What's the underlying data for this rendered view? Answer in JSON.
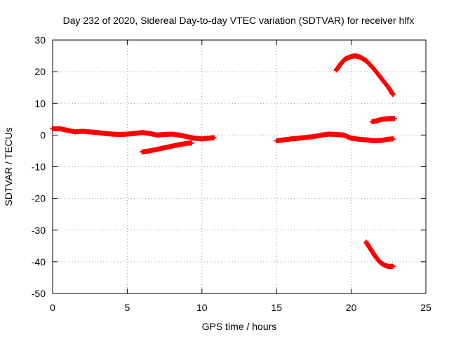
{
  "chart_data": {
    "type": "scatter",
    "title": "Day 232 of 2020, Sidereal Day-to-day VTEC variation (SDTVAR) for receiver hlfx",
    "xlabel": "GPS time / hours",
    "ylabel": "SDTVAR / TECUs",
    "xlim": [
      0,
      25
    ],
    "ylim": [
      -50,
      30
    ],
    "xticks": [
      "0",
      "5",
      "10",
      "15",
      "20",
      "25"
    ],
    "yticks": [
      "30",
      "20",
      "10",
      "0",
      "-10",
      "-20",
      "-30",
      "-40",
      "-50"
    ],
    "xtick_values": [
      0,
      5,
      10,
      15,
      20,
      25
    ],
    "ytick_values": [
      30,
      20,
      10,
      0,
      -10,
      -20,
      -30,
      -40,
      -50
    ],
    "grid": true,
    "marker": "plus",
    "color": "#ff0000",
    "series": [
      {
        "x": [
          0.0,
          0.5,
          1.0,
          1.5,
          2.0,
          2.5,
          3.0,
          3.5,
          4.0,
          4.5,
          5.0,
          5.5,
          6.0,
          6.5,
          7.0,
          7.5,
          8.0,
          8.5,
          9.0,
          9.5,
          10.0,
          10.5,
          10.8
        ],
        "y": [
          2.0,
          2.0,
          1.5,
          1.0,
          1.2,
          1.0,
          0.8,
          0.5,
          0.3,
          0.2,
          0.3,
          0.5,
          0.8,
          0.5,
          0.0,
          0.2,
          0.3,
          0.0,
          -0.5,
          -1.0,
          -1.2,
          -1.0,
          -0.8
        ]
      },
      {
        "x": [
          6.0,
          6.5,
          7.0,
          7.5,
          8.0,
          8.5,
          9.0,
          9.3
        ],
        "y": [
          -5.3,
          -5.0,
          -4.5,
          -4.0,
          -3.5,
          -3.0,
          -2.6,
          -2.5
        ]
      },
      {
        "x": [
          15.0,
          15.5,
          16.0,
          16.5,
          17.0,
          17.5,
          18.0,
          18.5,
          19.0,
          19.5,
          20.0,
          20.5,
          21.0,
          21.5,
          22.0,
          22.5,
          22.8
        ],
        "y": [
          -1.8,
          -1.5,
          -1.2,
          -1.0,
          -0.7,
          -0.5,
          0.0,
          0.3,
          0.2,
          0.0,
          -1.0,
          -1.3,
          -1.5,
          -1.8,
          -1.7,
          -1.3,
          -1.2
        ]
      },
      {
        "x": [
          19.0,
          19.3,
          19.6,
          20.0,
          20.3,
          20.6,
          21.0,
          21.5,
          22.0,
          22.5,
          22.8
        ],
        "y": [
          20.5,
          22.5,
          24.0,
          24.8,
          25.0,
          24.6,
          23.5,
          21.0,
          18.0,
          15.0,
          12.8
        ]
      },
      {
        "x": [
          21.4,
          21.7,
          22.0,
          22.3,
          22.6,
          22.9
        ],
        "y": [
          4.2,
          4.5,
          4.9,
          5.1,
          5.2,
          5.2
        ]
      },
      {
        "x": [
          21.0,
          21.3,
          21.6,
          21.9,
          22.2,
          22.5,
          22.8
        ],
        "y": [
          -33.8,
          -36.0,
          -38.2,
          -40.0,
          -41.0,
          -41.5,
          -41.4
        ]
      }
    ]
  }
}
